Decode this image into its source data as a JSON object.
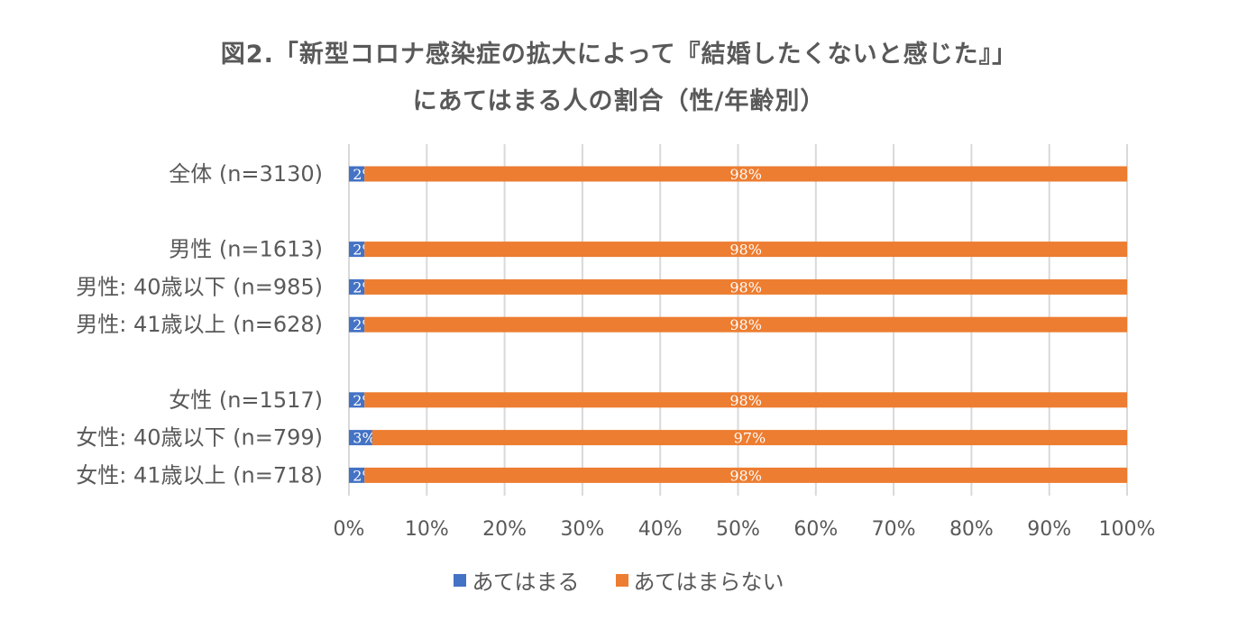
{
  "chart_title_line1": "図2.「新型コロナ感染症の拡大によって『結婚したくないと感じた』」",
  "chart_title_line2": "にあてはまる人の割合（性/年齢別）",
  "colors": {
    "series1": "#4472c4",
    "series2": "#ed7d31",
    "grid": "#d9d9d9",
    "text": "#595959"
  },
  "chart_data": {
    "type": "bar",
    "orientation": "horizontal",
    "stacked": "100%",
    "categories": [
      "全体 (n=3130)",
      "",
      "男性 (n=1613)",
      "男性: 40歳以下 (n=985)",
      "男性: 41歳以上 (n=628)",
      "",
      "女性 (n=1517)",
      "女性: 40歳以下 (n=799)",
      "女性: 41歳以上 (n=718)"
    ],
    "series": [
      {
        "name": "あてはまる",
        "values": [
          2,
          null,
          2,
          2,
          2,
          null,
          2,
          3,
          2
        ],
        "labels": [
          "2%",
          "",
          "2%",
          "2%",
          "2%",
          "",
          "2%",
          "3%",
          "2%"
        ]
      },
      {
        "name": "あてはまらない",
        "values": [
          98,
          null,
          98,
          98,
          98,
          null,
          98,
          97,
          98
        ],
        "labels": [
          "98%",
          "",
          "98%",
          "98%",
          "98%",
          "",
          "98%",
          "97%",
          "98%"
        ]
      }
    ],
    "x_ticks": [
      "0%",
      "10%",
      "20%",
      "30%",
      "40%",
      "50%",
      "60%",
      "70%",
      "80%",
      "90%",
      "100%"
    ],
    "xlim": [
      0,
      100
    ],
    "grid": true,
    "legend_position": "bottom"
  }
}
